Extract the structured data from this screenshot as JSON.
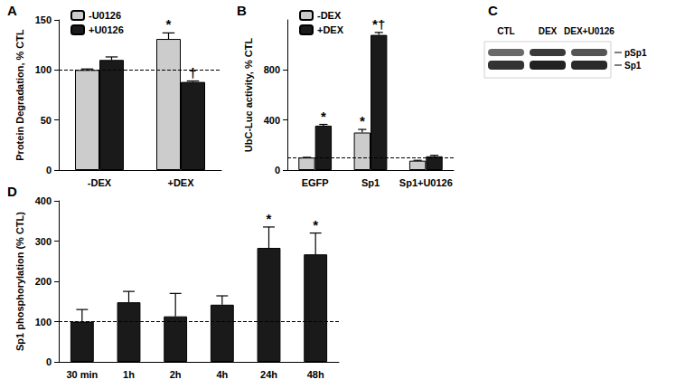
{
  "chart_data": [
    {
      "panel": "A",
      "type": "bar",
      "categories": [
        "-DEX",
        "+DEX"
      ],
      "ylabel": "Protein Degradation, % CTL",
      "ylim": [
        0,
        150
      ],
      "yticks": [
        0,
        50,
        100,
        150
      ],
      "reference_line": 100,
      "grid": false,
      "legend": "upper left",
      "series": [
        {
          "name": "-U0126",
          "color": "#cccccc",
          "values": [
            100,
            131
          ],
          "errors": [
            1,
            6
          ],
          "significance": [
            null,
            "*"
          ]
        },
        {
          "name": "+U0126",
          "color": "#1a1a1a",
          "values": [
            110,
            88
          ],
          "errors": [
            3,
            1
          ],
          "significance": [
            null,
            "†"
          ]
        }
      ]
    },
    {
      "panel": "B",
      "type": "bar",
      "categories": [
        "EGFP",
        "Sp1",
        "Sp1+U0126"
      ],
      "ylabel": "UbC-Luc activity, % CTL",
      "ylim": [
        0,
        1200
      ],
      "yticks": [
        0,
        400,
        800
      ],
      "reference_line": 100,
      "grid": false,
      "legend": "upper left",
      "series": [
        {
          "name": "-DEX",
          "color": "#cccccc",
          "values": [
            100,
            300,
            75
          ],
          "errors": [
            2,
            25,
            3
          ],
          "significance": [
            null,
            "*",
            null
          ]
        },
        {
          "name": "+DEX",
          "color": "#1a1a1a",
          "values": [
            355,
            1080,
            110
          ],
          "errors": [
            10,
            20,
            8
          ],
          "significance": [
            "*",
            "*†",
            null
          ]
        }
      ]
    },
    {
      "panel": "C",
      "type": "blot",
      "lanes": [
        "CTL",
        "DEX",
        "DEX+U0126"
      ],
      "bands": [
        "pSp1",
        "Sp1"
      ]
    },
    {
      "panel": "D",
      "type": "bar",
      "categories": [
        "30 min",
        "1h",
        "2h",
        "4h",
        "24h",
        "48h"
      ],
      "ylabel": "Sp1 phosphorylation (% CTL)",
      "ylim": [
        0,
        400
      ],
      "yticks": [
        0,
        100,
        200,
        300,
        400
      ],
      "reference_line": 100,
      "grid": false,
      "series": [
        {
          "color": "#1a1a1a",
          "values": [
            100,
            148,
            113,
            142,
            283,
            267
          ],
          "errors": [
            30,
            27,
            57,
            22,
            52,
            53
          ],
          "significance": [
            null,
            null,
            null,
            null,
            "*",
            "*"
          ]
        }
      ]
    }
  ]
}
